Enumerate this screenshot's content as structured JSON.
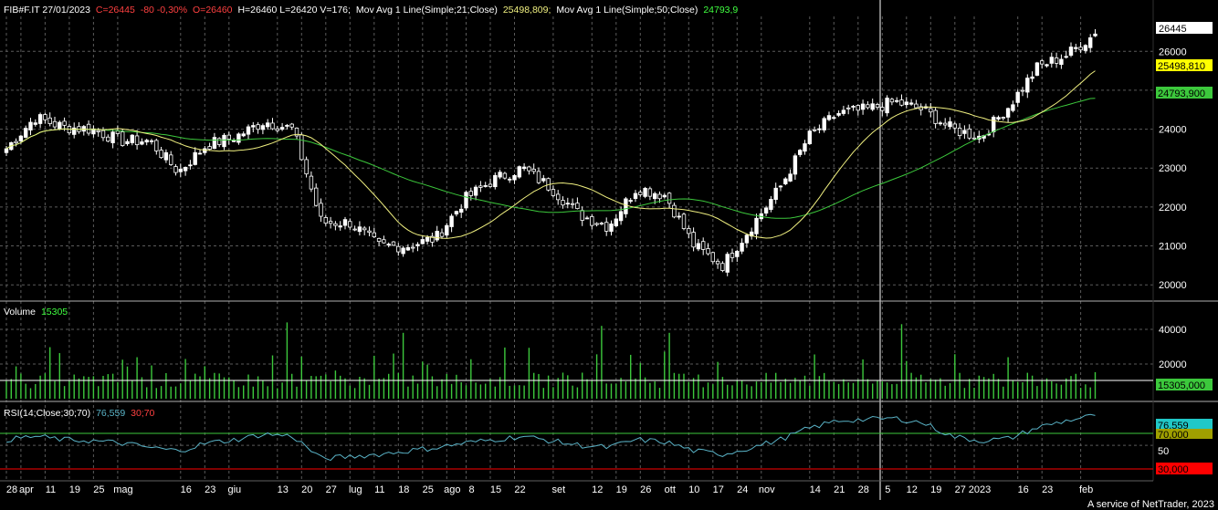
{
  "header": {
    "symbol": "FIB#F.IT 27/01/2023",
    "close": "C=26445",
    "change": "-80 -0,30%",
    "open": "O=26460",
    "hlv": "H=26460 L=26420 V=176;",
    "ma1_label": "Mov Avg 1 Line(Simple;21;Close)",
    "ma1_value": "25498,809;",
    "ma2_label": "Mov Avg 1 Line(Simple;50;Close)",
    "ma2_value": "24793,9"
  },
  "volume_panel": {
    "label": "Volume",
    "value": "15305"
  },
  "rsi_panel": {
    "label": "RSI(14;Close;30;70)",
    "value": "76,559",
    "levels": "30;70"
  },
  "footer": "A service of NetTrader, 2023",
  "colors": {
    "background": "#000000",
    "up_candle": "#ffffff",
    "down_candle": "#000000",
    "ma21": "#f0f080",
    "ma50": "#3cc83c",
    "volume": "#3cc83c",
    "rsi": "#5ab4c8",
    "rsi_line_70": "#3cc83c",
    "rsi_line_30": "#ff0000",
    "grid": "#5a5a5a",
    "header_red": "#ff4040",
    "header_green": "#40ff40"
  },
  "chart_data": [
    {
      "type": "candlestick",
      "title": "FIB#F.IT 27/01/2023",
      "y_ticks": [
        "26000",
        "25000",
        "24000",
        "23000",
        "22000",
        "21000",
        "20000"
      ],
      "ylim": [
        19700,
        26850
      ],
      "x_ticks": [
        "28",
        "apr",
        "11",
        "19",
        "25",
        "mag",
        "16",
        "23",
        "giu",
        "13",
        "20",
        "27",
        "lug",
        "11",
        "18",
        "25",
        "ago",
        "8",
        "15",
        "22",
        "set",
        "12",
        "19",
        "26",
        "ott",
        "10",
        "17",
        "24",
        "nov",
        "14",
        "21",
        "28",
        "5",
        "12",
        "19",
        "27",
        "2023",
        "16",
        "23",
        "feb"
      ],
      "x_tick_positions": [
        0,
        3,
        8,
        13,
        18,
        23,
        36,
        41,
        46,
        56,
        61,
        66,
        71,
        76,
        81,
        86,
        91,
        95,
        100,
        105,
        113,
        121,
        126,
        131,
        136,
        141,
        146,
        151,
        156,
        166,
        171,
        176,
        181,
        186,
        191,
        196,
        200,
        209,
        214,
        222
      ],
      "weekly_closes": [
        23500,
        24300,
        24050,
        24000,
        23700,
        23700,
        22900,
        23600,
        23800,
        24200,
        24000,
        21600,
        21600,
        21000,
        21000,
        21200,
        22200,
        22700,
        23000,
        22500,
        21800,
        21500,
        22500,
        22300,
        21000,
        20500,
        21500,
        22500,
        23800,
        24400,
        24500,
        24700,
        24500,
        24000,
        23800,
        24600,
        25600,
        25900,
        26445
      ],
      "markers": [
        {
          "label": "last close",
          "value": "26445"
        },
        {
          "label": "MA21",
          "value": "25498,810"
        },
        {
          "label": "MA50",
          "value": "24793,900"
        }
      ],
      "series": [
        {
          "name": "Mov Avg 1 Line(Simple;21;Close)",
          "last": 25498.81
        },
        {
          "name": "Mov Avg 1 Line(Simple;50;Close)",
          "last": 24793.9
        }
      ]
    },
    {
      "type": "bar",
      "title": "Volume",
      "y_ticks": [
        "40000",
        "20000"
      ],
      "ylim": [
        0,
        50000
      ],
      "last_value": "15305,000",
      "spikes": [
        {
          "day": 58,
          "value": 44000
        },
        {
          "day": 185,
          "value": 43000
        },
        {
          "day": 123,
          "value": 42000
        },
        {
          "day": 82,
          "value": 38000
        },
        {
          "day": 137,
          "value": 38000
        }
      ]
    },
    {
      "type": "line",
      "title": "RSI(14;Close;30;70)",
      "y_ticks": [
        "70,000",
        "50",
        "30,000"
      ],
      "ylim": [
        20,
        85
      ],
      "levels": [
        30,
        70
      ],
      "last_value": "76,559",
      "weekly_values": [
        55,
        58,
        55,
        54,
        52,
        48,
        45,
        52,
        55,
        60,
        58,
        38,
        40,
        42,
        45,
        48,
        52,
        55,
        58,
        54,
        50,
        48,
        55,
        53,
        45,
        42,
        48,
        55,
        65,
        72,
        73,
        74,
        70,
        58,
        54,
        56,
        66,
        72,
        76.559
      ]
    }
  ]
}
